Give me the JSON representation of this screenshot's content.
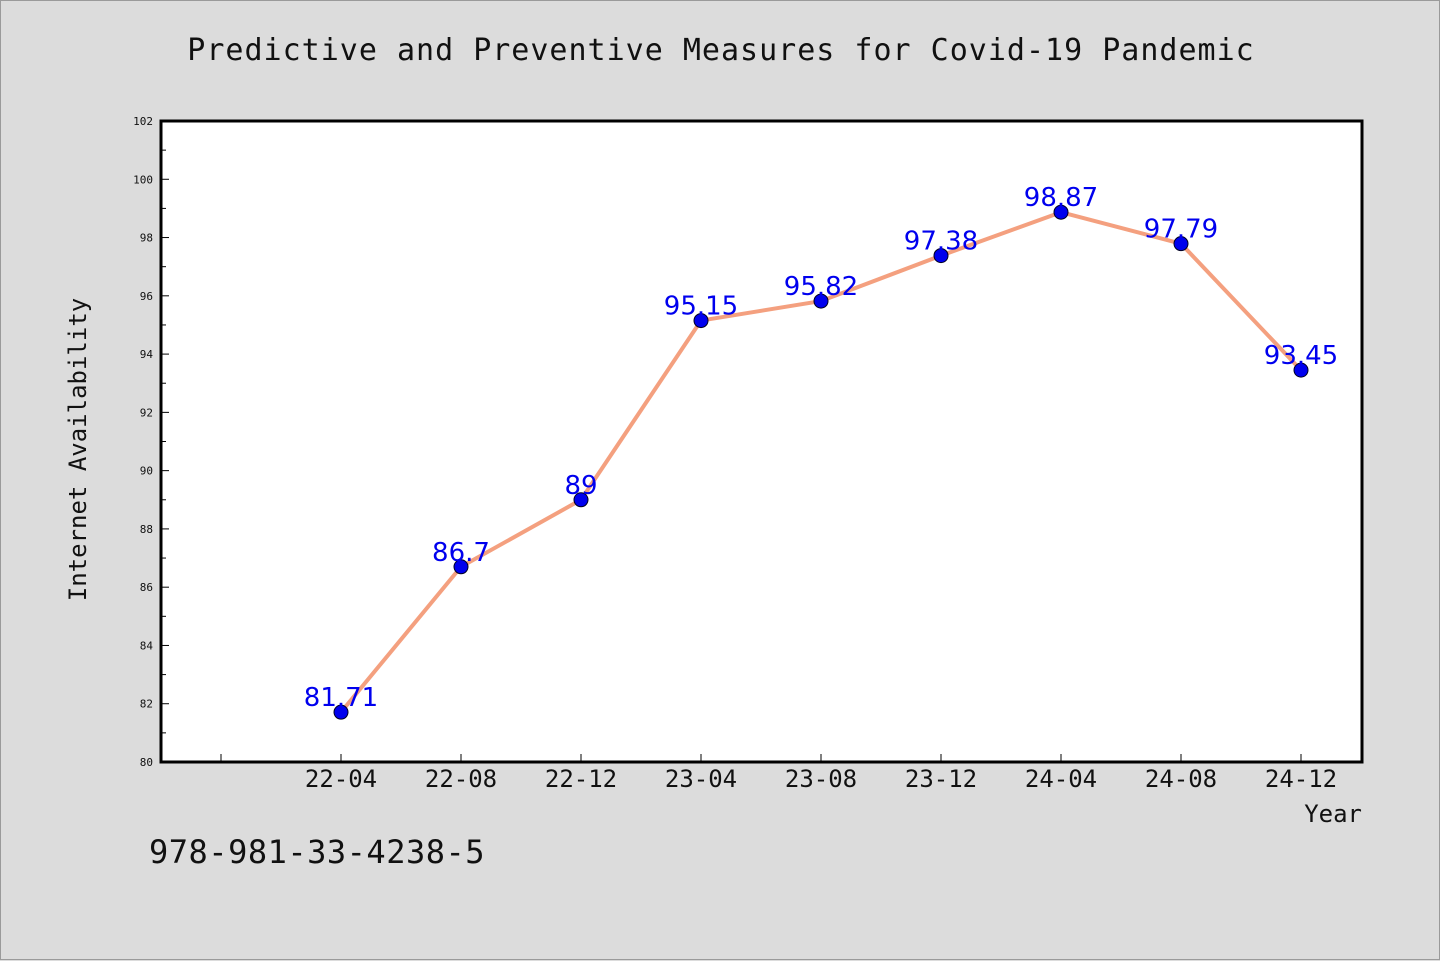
{
  "chart_data": {
    "type": "line",
    "title": "Predictive and Preventive Measures for Covid-19 Pandemic",
    "xlabel": "Year",
    "ylabel": "Internet Availability",
    "categories": [
      "22-04",
      "22-08",
      "22-12",
      "23-04",
      "23-08",
      "23-12",
      "24-04",
      "24-08",
      "24-12"
    ],
    "values": [
      81.71,
      86.7,
      89,
      95.15,
      95.82,
      97.38,
      98.87,
      97.79,
      93.45
    ],
    "data_labels": [
      "81.71",
      "86.7",
      "89",
      "95.15",
      "95.82",
      "97.38",
      "98.87",
      "97.79",
      "93.45"
    ],
    "ylim": [
      80,
      102
    ],
    "yticks": [
      80,
      82,
      84,
      86,
      88,
      90,
      92,
      94,
      96,
      98,
      100,
      102
    ],
    "grid": false,
    "line_color": "#f4a07f",
    "marker_color": "#0000ee",
    "label_color": "#0000ee"
  },
  "footer": {
    "isbn": "978-981-33-4238-5"
  }
}
